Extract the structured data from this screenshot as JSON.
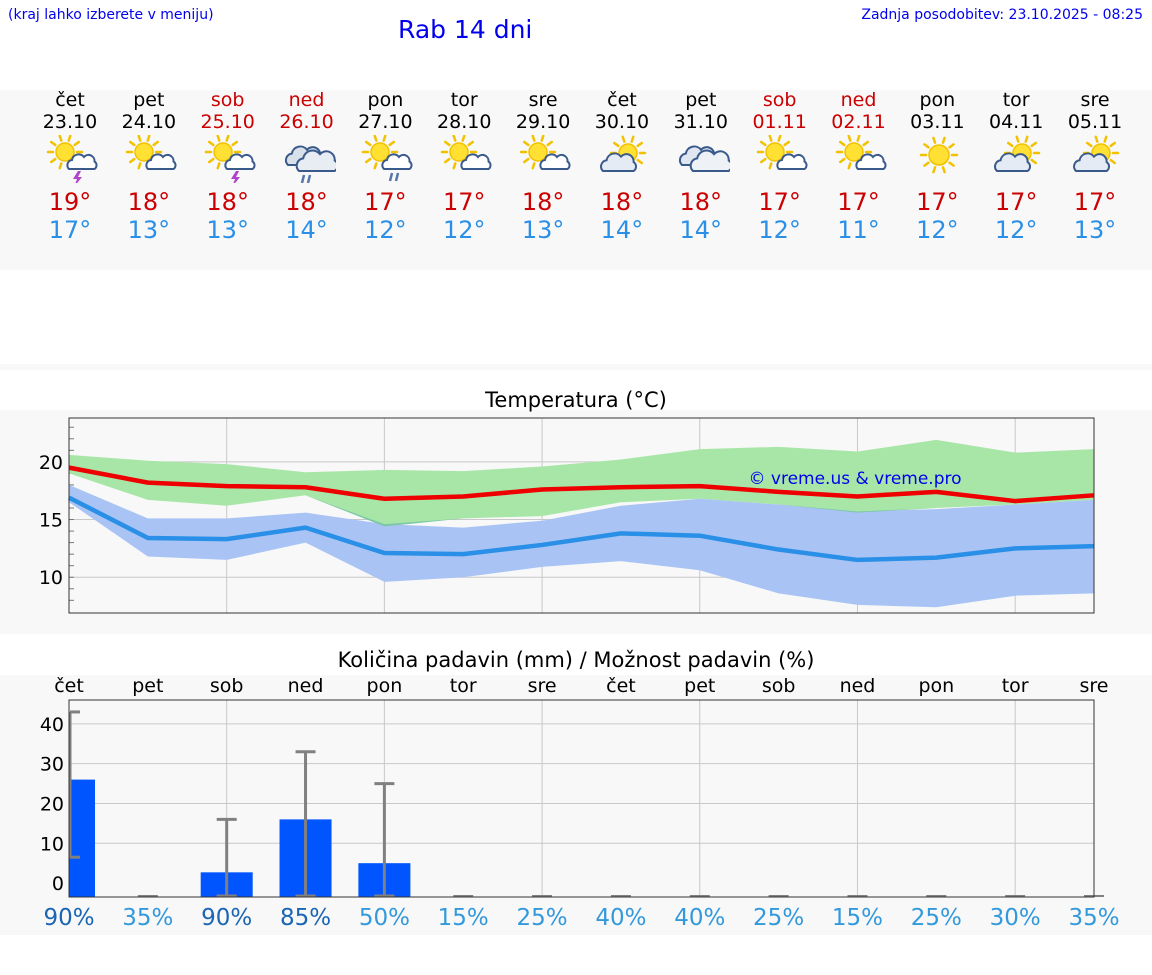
{
  "header": {
    "location_hint": "(kraj lahko izberete v meniju)",
    "title": "Rab 14 dni",
    "updated": "Zadnja posodobitev: 23.10.2025 - 08:25"
  },
  "days": [
    {
      "name": "čet",
      "date": "23.10",
      "weekend": false,
      "icon": "sun-cloud-thunder-icon",
      "tmax": "19°",
      "tmin": "17°"
    },
    {
      "name": "pet",
      "date": "24.10",
      "weekend": false,
      "icon": "sun-cloud-icon",
      "tmax": "18°",
      "tmin": "13°"
    },
    {
      "name": "sob",
      "date": "25.10",
      "weekend": true,
      "icon": "sun-cloud-thunder-icon",
      "tmax": "18°",
      "tmin": "13°"
    },
    {
      "name": "ned",
      "date": "26.10",
      "weekend": true,
      "icon": "cloud-rain-icon",
      "tmax": "18°",
      "tmin": "14°"
    },
    {
      "name": "pon",
      "date": "27.10",
      "weekend": false,
      "icon": "sun-cloud-rain-icon",
      "tmax": "17°",
      "tmin": "12°"
    },
    {
      "name": "tor",
      "date": "28.10",
      "weekend": false,
      "icon": "sun-cloud-icon",
      "tmax": "17°",
      "tmin": "12°"
    },
    {
      "name": "sre",
      "date": "29.10",
      "weekend": false,
      "icon": "sun-cloud-icon",
      "tmax": "18°",
      "tmin": "13°"
    },
    {
      "name": "čet",
      "date": "30.10",
      "weekend": false,
      "icon": "cloud-sun-icon",
      "tmax": "18°",
      "tmin": "14°"
    },
    {
      "name": "pet",
      "date": "31.10",
      "weekend": false,
      "icon": "cloudy-icon",
      "tmax": "18°",
      "tmin": "14°"
    },
    {
      "name": "sob",
      "date": "01.11",
      "weekend": true,
      "icon": "sun-cloud-icon",
      "tmax": "17°",
      "tmin": "12°"
    },
    {
      "name": "ned",
      "date": "02.11",
      "weekend": true,
      "icon": "sun-cloud-icon",
      "tmax": "17°",
      "tmin": "11°"
    },
    {
      "name": "pon",
      "date": "03.11",
      "weekend": false,
      "icon": "sun-icon",
      "tmax": "17°",
      "tmin": "12°"
    },
    {
      "name": "tor",
      "date": "04.11",
      "weekend": false,
      "icon": "cloud-sun-icon",
      "tmax": "17°",
      "tmin": "12°"
    },
    {
      "name": "sre",
      "date": "05.11",
      "weekend": false,
      "icon": "cloud-sun-icon",
      "tmax": "17°",
      "tmin": "13°"
    }
  ],
  "colors": {
    "max_line": "#ee0000",
    "min_line": "#2a8fe6",
    "max_band": "#a8e6a8",
    "min_band": "#a9c4f4",
    "overlap_band": "#7ec7a8",
    "bar": "#0055ff",
    "whisker": "#808080",
    "weekend_text": "#cc0000",
    "pct_high": "#1a66b3",
    "pct_low": "#3399dd"
  },
  "chart_data": [
    {
      "type": "line",
      "title": "Temperatura (°C)",
      "watermark": "© vreme.us & vreme.pro",
      "x": [
        "23.10",
        "24.10",
        "25.10",
        "26.10",
        "27.10",
        "28.10",
        "29.10",
        "30.10",
        "31.10",
        "01.11",
        "02.11",
        "03.11",
        "04.11",
        "05.11"
      ],
      "ylim": [
        6.9,
        23.8
      ],
      "yticks": [
        10,
        15,
        20
      ],
      "grid": true,
      "series": [
        {
          "name": "max",
          "values": [
            19.5,
            18.2,
            17.9,
            17.8,
            16.8,
            17.0,
            17.6,
            17.8,
            17.9,
            17.4,
            17.0,
            17.4,
            16.6,
            17.1
          ],
          "band_low": [
            19.0,
            16.7,
            16.2,
            17.1,
            14.4,
            15.1,
            15.3,
            16.5,
            16.8,
            16.3,
            15.6,
            16.0,
            16.3,
            16.7
          ],
          "band_high": [
            20.6,
            20.1,
            19.8,
            19.1,
            19.3,
            19.2,
            19.6,
            20.2,
            21.1,
            21.3,
            20.9,
            21.9,
            20.8,
            21.1
          ]
        },
        {
          "name": "min",
          "values": [
            16.9,
            13.4,
            13.3,
            14.3,
            12.1,
            12.0,
            12.8,
            13.8,
            13.6,
            12.4,
            11.5,
            11.7,
            12.5,
            12.7
          ],
          "band_low": [
            16.5,
            11.8,
            11.5,
            13.0,
            9.6,
            10.0,
            10.9,
            11.4,
            10.6,
            8.6,
            7.6,
            7.4,
            8.4,
            8.6
          ],
          "band_high": [
            18.0,
            15.1,
            15.1,
            15.6,
            14.6,
            14.3,
            14.9,
            16.2,
            16.8,
            16.3,
            15.7,
            15.9,
            16.3,
            16.7
          ]
        }
      ]
    },
    {
      "type": "bar",
      "title": "Količina padavin (mm) / Možnost padavin (%)",
      "categories": [
        "čet",
        "pet",
        "sob",
        "ned",
        "pon",
        "tor",
        "sre",
        "čet",
        "pet",
        "sob",
        "ned",
        "pon",
        "tor",
        "sre"
      ],
      "ylim": [
        -3.5,
        46
      ],
      "yticks": [
        0,
        10,
        20,
        30,
        40
      ],
      "grid": true,
      "values": [
        26,
        0,
        2.7,
        16,
        5,
        0,
        0,
        0,
        0,
        0,
        0,
        0,
        0,
        0
      ],
      "range_low": [
        6.5,
        0,
        0,
        0,
        0,
        0,
        0,
        0,
        0,
        0,
        0,
        0,
        0,
        0
      ],
      "range_high": [
        43,
        0,
        16,
        33,
        25,
        0,
        0,
        0,
        0,
        0,
        0,
        0,
        0,
        0
      ],
      "probability": [
        "90%",
        "35%",
        "90%",
        "85%",
        "50%",
        "15%",
        "25%",
        "40%",
        "40%",
        "25%",
        "15%",
        "25%",
        "30%",
        "35%"
      ]
    }
  ]
}
